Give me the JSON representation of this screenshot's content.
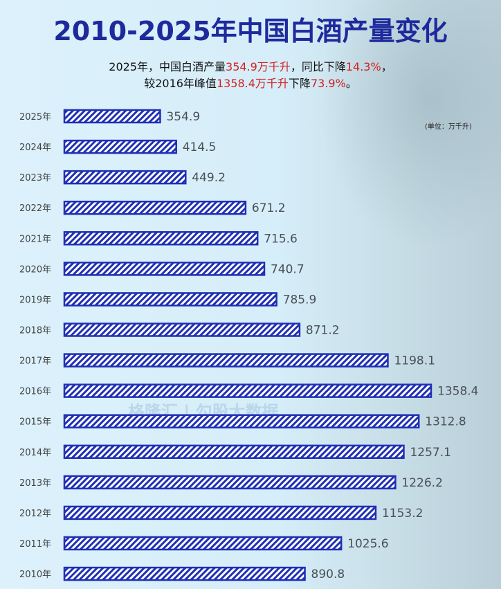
{
  "title": "2010-2025年中国白酒产量变化",
  "subtitle": {
    "line1": [
      "2025年，中国白酒产量",
      "354.9万千升",
      "，同比下降",
      "14.3%",
      "，"
    ],
    "line2": [
      "较2016年峰值",
      "1358.4万千升",
      "下降",
      "73.9%",
      "。"
    ]
  },
  "unit_label": "(单位：万千升)",
  "watermark": "格隆汇 | 勾股大数据",
  "colors": {
    "title": "#1e2a9c",
    "bar": "#1f2fb5",
    "highlight": "#d42020"
  },
  "chart_data": {
    "type": "bar",
    "orientation": "horizontal",
    "categories": [
      "2025年",
      "2024年",
      "2023年",
      "2022年",
      "2021年",
      "2020年",
      "2019年",
      "2018年",
      "2017年",
      "2016年",
      "2015年",
      "2014年",
      "2013年",
      "2012年",
      "2011年",
      "2010年"
    ],
    "values": [
      354.9,
      414.5,
      449.2,
      671.2,
      715.6,
      740.7,
      785.9,
      871.2,
      1198.1,
      1358.4,
      1312.8,
      1257.1,
      1226.2,
      1153.2,
      1025.6,
      890.8
    ],
    "data_labels": [
      "354.9",
      "414.5",
      "449.2",
      "671.2",
      "715.6",
      "740.7",
      "785.9",
      "871.2",
      "1198.1",
      "1358.4",
      "1312.8",
      "1257.1",
      "1226.2",
      "1153.2",
      "1025.6",
      "890.8"
    ],
    "unit": "万千升",
    "grid": false,
    "fill": "hatched"
  }
}
